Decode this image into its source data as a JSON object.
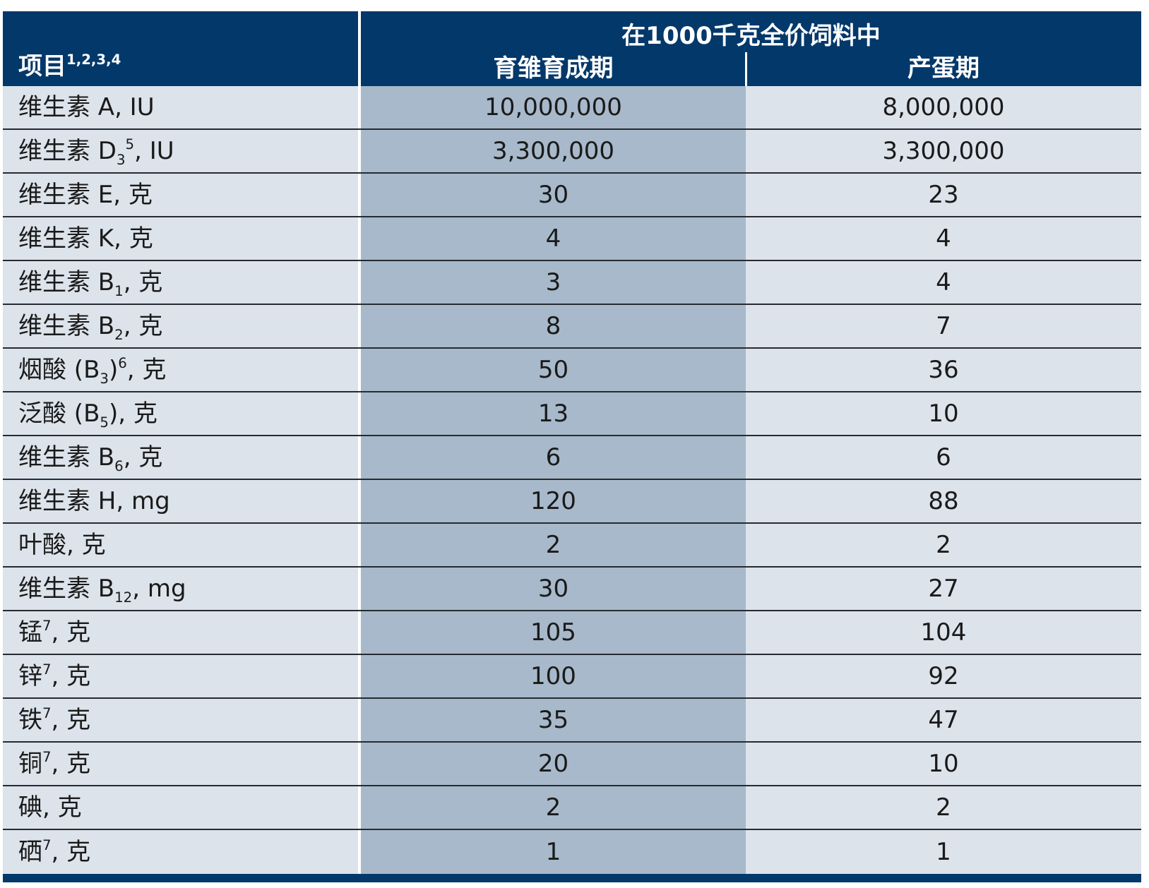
{
  "table": {
    "header": {
      "item_label": "项目",
      "item_label_sup": "1,2,3,4",
      "group_label": "在1000千克全价饲料中",
      "columns": [
        "育雏育成期",
        "产蛋期"
      ]
    },
    "rows": [
      {
        "item": [
          {
            "text": "维生素 A, IU"
          }
        ],
        "values": [
          "10,000,000",
          "8,000,000"
        ]
      },
      {
        "item": [
          {
            "text": "维生素 D"
          },
          {
            "sub": "3"
          },
          {
            "sup": "5"
          },
          {
            "text": ", IU"
          }
        ],
        "values": [
          "3,300,000",
          "3,300,000"
        ]
      },
      {
        "item": [
          {
            "text": "维生素 E, 克"
          }
        ],
        "values": [
          "30",
          "23"
        ]
      },
      {
        "item": [
          {
            "text": "维生素 K, 克"
          }
        ],
        "values": [
          "4",
          "4"
        ]
      },
      {
        "item": [
          {
            "text": "维生素 B"
          },
          {
            "sub": "1"
          },
          {
            "text": ", 克"
          }
        ],
        "values": [
          "3",
          "4"
        ]
      },
      {
        "item": [
          {
            "text": "维生素 B"
          },
          {
            "sub": "2"
          },
          {
            "text": ", 克"
          }
        ],
        "values": [
          "8",
          "7"
        ]
      },
      {
        "item": [
          {
            "text": "烟酸 (B"
          },
          {
            "sub": "3"
          },
          {
            "text": ")"
          },
          {
            "sup": "6"
          },
          {
            "text": ", 克"
          }
        ],
        "values": [
          "50",
          "36"
        ]
      },
      {
        "item": [
          {
            "text": "泛酸 (B"
          },
          {
            "sub": "5"
          },
          {
            "text": "), 克"
          }
        ],
        "values": [
          "13",
          "10"
        ]
      },
      {
        "item": [
          {
            "text": "维生素 B"
          },
          {
            "sub": "6"
          },
          {
            "text": ", 克"
          }
        ],
        "values": [
          "6",
          "6"
        ]
      },
      {
        "item": [
          {
            "text": "维生素 H, mg"
          }
        ],
        "values": [
          "120",
          "88"
        ]
      },
      {
        "item": [
          {
            "text": "叶酸, 克"
          }
        ],
        "values": [
          "2",
          "2"
        ]
      },
      {
        "item": [
          {
            "text": "维生素 B"
          },
          {
            "sub": "12"
          },
          {
            "text": ", mg"
          }
        ],
        "values": [
          "30",
          "27"
        ]
      },
      {
        "item": [
          {
            "text": "锰"
          },
          {
            "sup": "7"
          },
          {
            "text": ", 克"
          }
        ],
        "values": [
          "105",
          "104"
        ]
      },
      {
        "item": [
          {
            "text": "锌"
          },
          {
            "sup": "7"
          },
          {
            "text": ", 克"
          }
        ],
        "values": [
          "100",
          "92"
        ]
      },
      {
        "item": [
          {
            "text": "铁"
          },
          {
            "sup": "7"
          },
          {
            "text": ", 克"
          }
        ],
        "values": [
          "35",
          "47"
        ]
      },
      {
        "item": [
          {
            "text": "铜"
          },
          {
            "sup": "7"
          },
          {
            "text": ", 克"
          }
        ],
        "values": [
          "20",
          "10"
        ]
      },
      {
        "item": [
          {
            "text": "碘, 克"
          }
        ],
        "values": [
          "2",
          "2"
        ]
      },
      {
        "item": [
          {
            "text": "硒"
          },
          {
            "sup": "7"
          },
          {
            "text": ", 克"
          }
        ],
        "values": [
          "1",
          "1"
        ]
      }
    ]
  },
  "colors": {
    "header_bg": "#03386a",
    "item_bg": "#dce3eb",
    "grower_bg": "#a7b9ca",
    "layer_bg": "#dce3eb",
    "rule": "#262b31"
  }
}
